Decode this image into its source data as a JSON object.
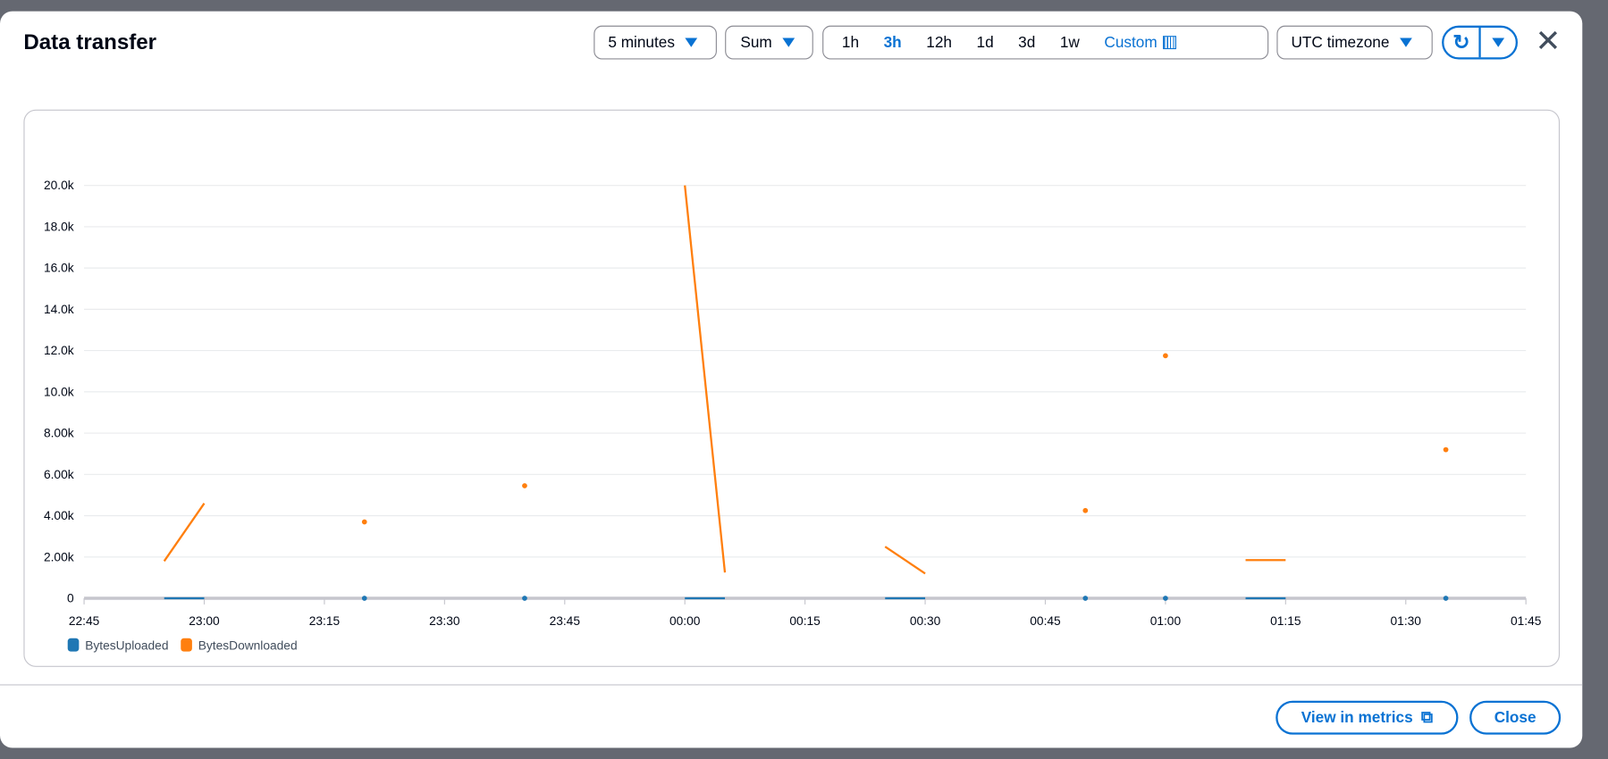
{
  "modal": {
    "title": "Data transfer"
  },
  "controls": {
    "period": "5 minutes",
    "statistic": "Sum",
    "ranges": [
      "1h",
      "3h",
      "12h",
      "1d",
      "3d",
      "1w"
    ],
    "selected_range": "3h",
    "custom_label": "Custom",
    "timezone": "UTC timezone"
  },
  "footer": {
    "view_in_metrics": "View in metrics",
    "close": "Close"
  },
  "colors": {
    "accent": "#0972d3",
    "uploaded": "#1f77b4",
    "downloaded": "#ff7f0e"
  },
  "chart_data": {
    "type": "line",
    "xlabel": "",
    "ylabel": "",
    "x_ticks": [
      "22:45",
      "23:00",
      "23:15",
      "23:30",
      "23:45",
      "00:00",
      "00:15",
      "00:30",
      "00:45",
      "01:00",
      "01:15",
      "01:30",
      "01:45"
    ],
    "y_ticks": [
      "0",
      "2.00k",
      "4.00k",
      "6.00k",
      "8.00k",
      "10.0k",
      "12.0k",
      "14.0k",
      "16.0k",
      "18.0k",
      "20.0k"
    ],
    "ylim": [
      0,
      20000
    ],
    "xlim": [
      "22:45",
      "01:45"
    ],
    "grid": true,
    "legend": "bottom-left",
    "x": [
      "22:55",
      "23:00",
      "23:20",
      "23:40",
      "00:00",
      "00:05",
      "00:25",
      "00:30",
      "00:50",
      "01:00",
      "01:10",
      "01:15",
      "01:35"
    ],
    "series": [
      {
        "name": "BytesUploaded",
        "color": "#1f77b4",
        "values": [
          0,
          0,
          0,
          0,
          0,
          0,
          0,
          0,
          0,
          0,
          0,
          0,
          0
        ]
      },
      {
        "name": "BytesDownloaded",
        "color": "#ff7f0e",
        "values": [
          1800,
          4600,
          3700,
          5450,
          20000,
          1250,
          2500,
          1200,
          4250,
          11750,
          1850,
          1850,
          7200
        ]
      }
    ]
  }
}
